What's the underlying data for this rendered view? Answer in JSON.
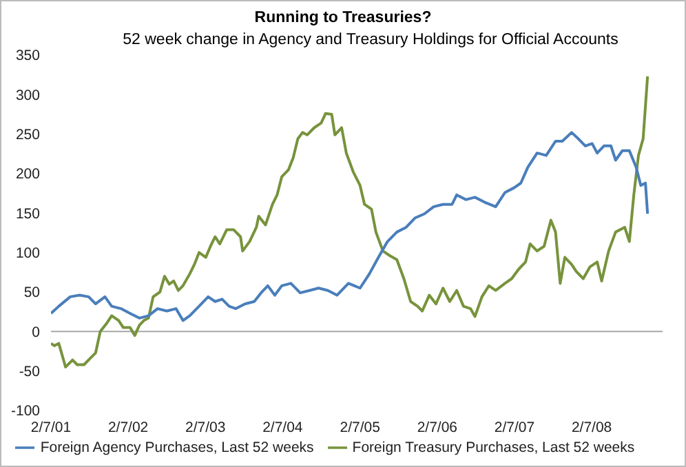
{
  "chart_data": {
    "type": "line",
    "title": "Running to Treasuries?",
    "subtitle": "52 week change in Agency and Treasury Holdings for Official Accounts",
    "xlim": [
      "2001-02-07",
      "2009-01-07"
    ],
    "xticks": [
      {
        "value": "2001-02-07",
        "label": "2/7/01"
      },
      {
        "value": "2002-02-07",
        "label": "2/7/02"
      },
      {
        "value": "2003-02-07",
        "label": "2/7/03"
      },
      {
        "value": "2004-02-07",
        "label": "2/7/04"
      },
      {
        "value": "2005-02-07",
        "label": "2/7/05"
      },
      {
        "value": "2006-02-07",
        "label": "2/7/06"
      },
      {
        "value": "2007-02-07",
        "label": "2/7/07"
      },
      {
        "value": "2008-02-07",
        "label": "2/7/08"
      }
    ],
    "ylim": [
      -100,
      350
    ],
    "yticks": [
      -100,
      -50,
      0,
      50,
      100,
      150,
      200,
      250,
      300,
      350
    ],
    "grid": false,
    "legend": "bottom",
    "ref_lines": [
      {
        "axis": "y",
        "value": 0,
        "color": "#a6a6a6"
      }
    ],
    "marker": "none",
    "line_style": "solid",
    "series": [
      {
        "name": "Foreign Treasury Purchases, Last 52 weeks",
        "color": "#77933c",
        "x": [
          "2001-02-07",
          "2001-02-23",
          "2001-03-16",
          "2001-04-17",
          "2001-05-20",
          "2001-06-11",
          "2001-07-13",
          "2001-08-15",
          "2001-09-06",
          "2001-09-28",
          "2001-10-30",
          "2001-11-21",
          "2001-12-24",
          "2002-01-15",
          "2002-02-16",
          "2002-03-10",
          "2002-04-01",
          "2002-04-22",
          "2002-05-14",
          "2002-06-05",
          "2002-07-07",
          "2002-07-29",
          "2002-08-20",
          "2002-09-10",
          "2002-10-02",
          "2002-10-24",
          "2002-11-25",
          "2002-12-17",
          "2003-01-08",
          "2003-02-09",
          "2003-03-03",
          "2003-03-25",
          "2003-04-16",
          "2003-05-19",
          "2003-06-20",
          "2003-07-23",
          "2003-08-02",
          "2003-09-04",
          "2003-10-06",
          "2003-10-17",
          "2003-11-18",
          "2003-12-21",
          "2004-01-12",
          "2004-02-03",
          "2004-03-06",
          "2004-03-28",
          "2004-04-19",
          "2004-05-11",
          "2004-06-02",
          "2004-07-05",
          "2004-08-07",
          "2004-08-28",
          "2004-09-26",
          "2004-10-11",
          "2004-11-12",
          "2004-12-04",
          "2005-01-06",
          "2005-02-07",
          "2005-02-28",
          "2005-04-02",
          "2005-04-23",
          "2005-05-26",
          "2005-06-28",
          "2005-07-31",
          "2005-09-02",
          "2005-10-04",
          "2005-11-06",
          "2005-11-28",
          "2005-12-31",
          "2006-02-01",
          "2006-03-06",
          "2006-04-07",
          "2006-05-10",
          "2006-06-11",
          "2006-07-14",
          "2006-08-04",
          "2006-09-06",
          "2006-10-09",
          "2006-11-10",
          "2006-12-24",
          "2007-01-25",
          "2007-02-27",
          "2007-03-31",
          "2007-04-22",
          "2007-05-25",
          "2007-06-27",
          "2007-07-29",
          "2007-08-20",
          "2007-09-11",
          "2007-10-03",
          "2007-11-04",
          "2007-11-26",
          "2007-12-29",
          "2008-01-30",
          "2008-03-04",
          "2008-03-25",
          "2008-04-27",
          "2008-05-30",
          "2008-07-12",
          "2008-08-03",
          "2008-08-24",
          "2008-09-15",
          "2008-10-07",
          "2008-10-28"
        ],
        "values": [
          -15,
          -18,
          -15,
          -45,
          -36,
          -42,
          -42,
          -33,
          -27,
          0,
          11,
          20,
          14,
          5,
          5,
          -5,
          8,
          14,
          17,
          44,
          50,
          70,
          60,
          64,
          52,
          58,
          73,
          85,
          100,
          94,
          108,
          120,
          111,
          129,
          129,
          120,
          102,
          114,
          132,
          146,
          135,
          161,
          173,
          196,
          205,
          220,
          244,
          252,
          249,
          258,
          264,
          276,
          275,
          249,
          258,
          226,
          202,
          185,
          161,
          155,
          126,
          102,
          96,
          91,
          67,
          38,
          32,
          26,
          46,
          35,
          55,
          38,
          52,
          32,
          29,
          19,
          44,
          58,
          52,
          61,
          67,
          79,
          88,
          111,
          102,
          108,
          141,
          126,
          61,
          94,
          85,
          76,
          67,
          82,
          88,
          64,
          102,
          126,
          132,
          114,
          173,
          223,
          244,
          323
        ]
      },
      {
        "name": "Foreign Agency Purchases, Last 52 weeks",
        "color": "#4a7ebb",
        "x": [
          "2001-02-07",
          "2001-03-16",
          "2001-05-09",
          "2001-06-22",
          "2001-08-04",
          "2001-09-06",
          "2001-10-20",
          "2001-11-21",
          "2002-01-04",
          "2002-02-16",
          "2002-04-01",
          "2002-05-14",
          "2002-06-26",
          "2002-08-09",
          "2002-09-21",
          "2002-10-24",
          "2002-11-25",
          "2003-01-08",
          "2003-02-20",
          "2003-03-25",
          "2003-04-27",
          "2003-05-30",
          "2003-07-01",
          "2003-08-13",
          "2003-09-26",
          "2003-10-28",
          "2003-11-29",
          "2004-01-01",
          "2004-02-03",
          "2004-03-17",
          "2004-04-30",
          "2004-06-13",
          "2004-07-26",
          "2004-09-08",
          "2004-10-21",
          "2004-12-14",
          "2005-02-07",
          "2005-03-23",
          "2005-05-05",
          "2005-06-17",
          "2005-07-31",
          "2005-09-13",
          "2005-10-26",
          "2005-12-08",
          "2006-01-21",
          "2006-03-06",
          "2006-04-18",
          "2006-05-10",
          "2006-06-22",
          "2006-08-04",
          "2006-09-17",
          "2006-11-10",
          "2006-12-24",
          "2007-02-05",
          "2007-03-09",
          "2007-04-11",
          "2007-05-25",
          "2007-07-07",
          "2007-08-20",
          "2007-09-21",
          "2007-11-04",
          "2007-12-06",
          "2008-01-08",
          "2008-02-09",
          "2008-03-04",
          "2008-04-05",
          "2008-05-08",
          "2008-05-30",
          "2008-07-01",
          "2008-08-03",
          "2008-09-04",
          "2008-09-26",
          "2008-10-18",
          "2008-10-28"
        ],
        "values": [
          23,
          32,
          44,
          46,
          44,
          35,
          44,
          32,
          29,
          23,
          17,
          20,
          29,
          26,
          29,
          14,
          20,
          32,
          44,
          38,
          41,
          32,
          29,
          35,
          38,
          49,
          58,
          46,
          58,
          61,
          49,
          52,
          55,
          52,
          46,
          61,
          55,
          73,
          94,
          114,
          126,
          132,
          144,
          149,
          158,
          161,
          161,
          173,
          167,
          170,
          164,
          158,
          176,
          182,
          188,
          208,
          226,
          223,
          241,
          241,
          252,
          244,
          235,
          238,
          226,
          235,
          235,
          217,
          229,
          229,
          208,
          185,
          188,
          149
        ]
      }
    ]
  }
}
